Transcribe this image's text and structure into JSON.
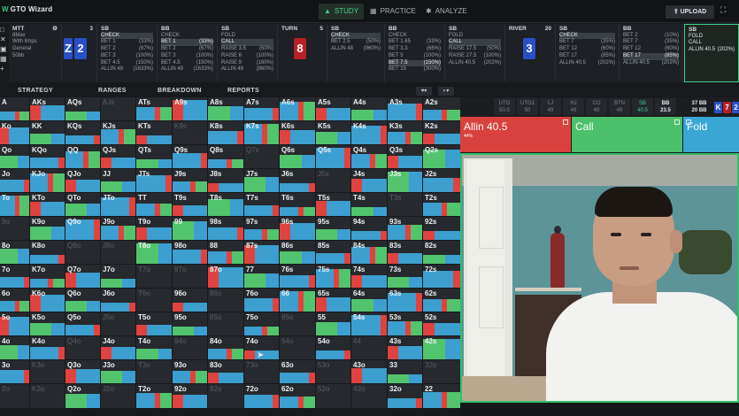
{
  "app": {
    "title": "GTO Wizard",
    "nav": [
      {
        "label": "STUDY",
        "icon": "graduation-cap-icon",
        "active": true
      },
      {
        "label": "PRACTICE",
        "icon": "gamepad-icon",
        "active": false
      },
      {
        "label": "ANALYZE",
        "icon": "lightbulb-icon",
        "active": false
      }
    ],
    "upload_label": "UPLOAD",
    "expand_icon": "fullscreen-icon"
  },
  "sidebar_tools": [
    "close-icon",
    "x-icon",
    "save-icon",
    "grid-icon",
    "plus-icon"
  ],
  "game": {
    "title": "MTT",
    "lines": [
      "8Max",
      "With limps",
      "General",
      "50bb"
    ]
  },
  "flop_cards": {
    "count": "3",
    "cards": [
      "Z",
      "2"
    ]
  },
  "nodes": [
    {
      "pos": "SB",
      "lines": [
        [
          "CHECK",
          "",
          true
        ],
        [
          "BET 1",
          "(33%)",
          false
        ],
        [
          "BET 2",
          "(67%)",
          false
        ],
        [
          "BET 3",
          "(100%)",
          false
        ],
        [
          "BET 4.5",
          "(150%)",
          false
        ],
        [
          "ALLIN 49",
          "(1633%)",
          false
        ]
      ]
    },
    {
      "pos": "BB",
      "lines": [
        [
          "CHECK",
          "",
          false
        ],
        [
          "BET 1",
          "(33%)",
          true
        ],
        [
          "BET 2",
          "(67%)",
          false
        ],
        [
          "BET 3",
          "(100%)",
          false
        ],
        [
          "BET 4.5",
          "(150%)",
          false
        ],
        [
          "ALLIN 49",
          "(1633%)",
          false
        ]
      ]
    },
    {
      "pos": "SB",
      "lines": [
        [
          "FOLD",
          "",
          false
        ],
        [
          "CALL",
          "",
          true
        ],
        [
          "RAISE 3.5",
          "(50%)",
          false
        ],
        [
          "RAISE 6",
          "(100%)",
          false
        ],
        [
          "RAISE 9",
          "(160%)",
          false
        ],
        [
          "ALLIN 49",
          "(960%)",
          false
        ]
      ]
    }
  ],
  "turn": {
    "label": "TURN",
    "count": "5",
    "card": "8"
  },
  "nodes2": [
    {
      "pos": "SB",
      "lines": [
        [
          "CHECK",
          "",
          true
        ],
        [
          "BET 2.5",
          "(50%)",
          false
        ],
        [
          "ALLIN 48",
          "(960%)",
          false
        ]
      ]
    },
    {
      "pos": "BB",
      "lines": [
        [
          "CHECK",
          "",
          false
        ],
        [
          "BET 1.65",
          "(33%)",
          false
        ],
        [
          "BET 3.3",
          "(66%)",
          false
        ],
        [
          "BET 5",
          "(100%)",
          false
        ],
        [
          "BET 7.5",
          "(150%)",
          true
        ],
        [
          "BET 15",
          "(300%)",
          false
        ]
      ]
    },
    {
      "pos": "SB",
      "lines": [
        [
          "FOLD",
          "",
          false
        ],
        [
          "CALL",
          "",
          true
        ],
        [
          "RAISE 17.5",
          "(50%)",
          false
        ],
        [
          "RAISE 27.5",
          "(100%)",
          false
        ],
        [
          "ALLIN 40.5",
          "(202%)",
          false
        ]
      ]
    }
  ],
  "river": {
    "label": "RIVER",
    "count": "20",
    "card": "3"
  },
  "nodes3": [
    {
      "pos": "SB",
      "lines": [
        [
          "CHECK",
          "",
          true
        ],
        [
          "BET 7",
          "(35%)",
          false
        ],
        [
          "BET 12",
          "(60%)",
          false
        ],
        [
          "BET 17",
          "(85%)",
          false
        ],
        [
          "ALLIN 40.5",
          "(202%)",
          false
        ]
      ]
    },
    {
      "pos": "BB",
      "lines": [
        [
          "BET 2",
          "(10%)",
          false
        ],
        [
          "BET 7",
          "(35%)",
          false
        ],
        [
          "BET 12",
          "(60%)",
          false
        ],
        [
          "BET 17",
          "(85%)",
          true
        ],
        [
          "ALLIN 40.5",
          "(202%)",
          false
        ]
      ]
    },
    {
      "pos": "SB",
      "lines": [
        [
          "FOLD",
          "",
          false
        ],
        [
          "CALL",
          "",
          false
        ],
        [
          "ALLIN 40.5",
          "(202%)",
          false
        ]
      ],
      "current": true
    }
  ],
  "subnav": [
    "STRATEGY",
    "RANGES",
    "BREAKDOWN",
    "REPORTS"
  ],
  "seats": [
    {
      "name": "UTG",
      "val": "50.5"
    },
    {
      "name": "UTG1",
      "val": "50"
    },
    {
      "name": "LJ",
      "val": "49"
    },
    {
      "name": "HJ",
      "val": "49"
    },
    {
      "name": "CO",
      "val": "49"
    },
    {
      "name": "BTN",
      "val": "49"
    },
    {
      "name": "SB",
      "val": "40.5"
    },
    {
      "name": "BB",
      "val": "23.5"
    }
  ],
  "pot": {
    "top": "37 BB",
    "bottom": "20 BB"
  },
  "board_chips": [
    "K",
    "7",
    "2"
  ],
  "actions": [
    {
      "label": "Allin 40.5",
      "pct": "44%",
      "color": "#d9413e"
    },
    {
      "label": "Call",
      "pct": "",
      "color": "#4bc16b"
    },
    {
      "label": "Fold",
      "pct": "",
      "color": "#3aa6d6"
    }
  ],
  "colors": {
    "allin": "#e0423f",
    "call": "#53c46e",
    "fold": "#3c9fcf",
    "empty": "#26292d"
  },
  "grid": {
    "rows": [
      [
        "A",
        "AKs",
        "AQs",
        "AJs",
        "ATs",
        "A9s",
        "A8s",
        "A7s",
        "A6s",
        "A5s",
        "A4s",
        "A3s",
        "A2s"
      ],
      [
        "Ko",
        "KK",
        "KQs",
        "KJs",
        "KTs",
        "K9s",
        "K8s",
        "K7s",
        "K6s",
        "K5s",
        "K4s",
        "K3s",
        "K2s"
      ],
      [
        "Qo",
        "KQo",
        "QQ",
        "QJs",
        "QTs",
        "Q9s",
        "Q8s",
        "Q7s",
        "Q6s",
        "Q5s",
        "Q4s",
        "Q3s",
        "Q2s"
      ],
      [
        "Jo",
        "KJo",
        "QJo",
        "JJ",
        "JTs",
        "J9s",
        "J8s",
        "J7s",
        "J6s",
        "J5s",
        "J4s",
        "J3s",
        "J2s"
      ],
      [
        "To",
        "KTo",
        "QTo",
        "JTo",
        "TT",
        "T9s",
        "T8s",
        "T7s",
        "T6s",
        "T5s",
        "T4s",
        "T3s",
        "T2s"
      ],
      [
        "9o",
        "K9o",
        "Q9o",
        "J9o",
        "T9o",
        "99",
        "98s",
        "97s",
        "96s",
        "95s",
        "94s",
        "93s",
        "92s"
      ],
      [
        "8o",
        "K8o",
        "Q8o",
        "J8o",
        "T8o",
        "98o",
        "88",
        "87s",
        "86s",
        "85s",
        "84s",
        "83s",
        "82s"
      ],
      [
        "7o",
        "K7o",
        "Q7o",
        "J7o",
        "T7o",
        "97o",
        "87o",
        "77",
        "76s",
        "75s",
        "74s",
        "73s",
        "72s"
      ],
      [
        "6o",
        "K6o",
        "Q6o",
        "J6o",
        "T6o",
        "96o",
        "86o",
        "76o",
        "66",
        "65s",
        "64s",
        "63s",
        "62s"
      ],
      [
        "5o",
        "K5o",
        "Q5o",
        "J5o",
        "T5o",
        "95o",
        "85o",
        "75o",
        "65o",
        "55",
        "54s",
        "53s",
        "52s"
      ],
      [
        "4o",
        "K4o",
        "Q4o",
        "J4o",
        "T4o",
        "94o",
        "84o",
        "74o",
        "64o",
        "54o",
        "44",
        "43s",
        "42s"
      ],
      [
        "3o",
        "K3o",
        "Q3o",
        "J3o",
        "T3o",
        "93o",
        "83o",
        "73o",
        "63o",
        "53o",
        "43o",
        "33",
        "32s"
      ],
      [
        "2o",
        "K2o",
        "Q2o",
        "J2o",
        "T2o",
        "92o",
        "82o",
        "72o",
        "62o",
        "52o",
        "42o",
        "32o",
        "22"
      ]
    ]
  }
}
